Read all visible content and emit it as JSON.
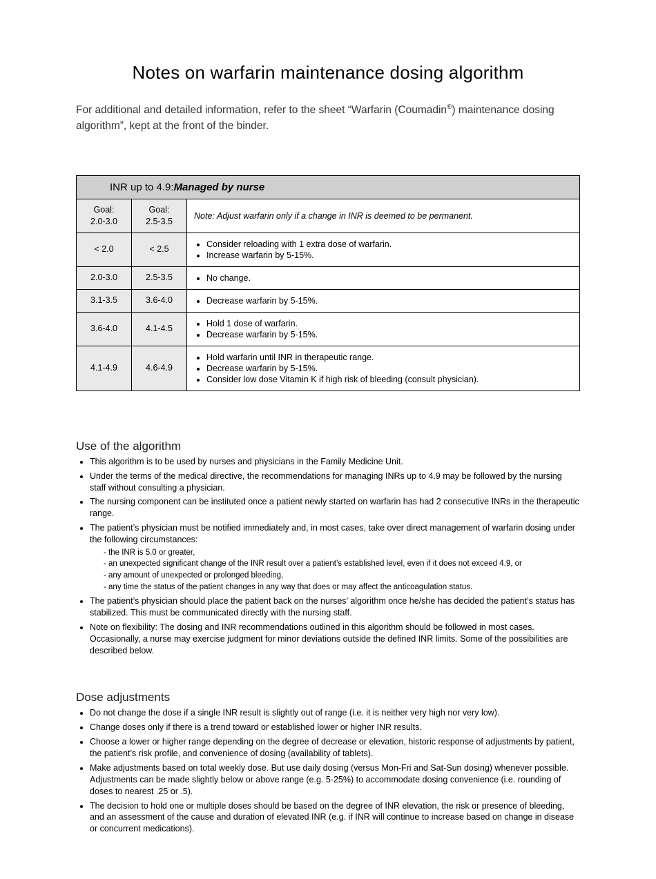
{
  "title": "Notes on warfarin maintenance dosing algorithm",
  "intro_prefix": "For additional and detailed information, refer to the sheet “Warfarin (Coumadin",
  "intro_suffix": ") maintenance dosing algorithm”, kept at the front of the binder.",
  "table": {
    "header_lead": "INR up to 4.9:  ",
    "header_managed": "Managed by nurse",
    "goal1_label": "Goal:",
    "goal1_range": "2.0-3.0",
    "goal2_label": "Goal:",
    "goal2_range": "2.5-3.5",
    "note": "Note: Adjust warfarin only if a change in INR is deemed to be permanent.",
    "rows": [
      {
        "g1": "< 2.0",
        "g2": "< 2.5",
        "actions": [
          "Consider reloading with 1 extra dose of warfarin.",
          "Increase warfarin by 5-15%."
        ]
      },
      {
        "g1": "2.0-3.0",
        "g2": "2.5-3.5",
        "actions": [
          "No change."
        ]
      },
      {
        "g1": "3.1-3.5",
        "g2": "3.6-4.0",
        "actions": [
          "Decrease warfarin by 5-15%."
        ]
      },
      {
        "g1": "3.6-4.0",
        "g2": "4.1-4.5",
        "actions": [
          "Hold 1 dose of warfarin.",
          "Decrease warfarin by 5-15%."
        ]
      },
      {
        "g1": "4.1-4.9",
        "g2": "4.6-4.9",
        "actions": [
          "Hold warfarin until INR in therapeutic range.",
          "Decrease warfarin by 5-15%.",
          "Consider low dose Vitamin K if high risk of bleeding (consult physician)."
        ]
      }
    ]
  },
  "use": {
    "heading": "Use of the algorithm",
    "items": [
      "This algorithm is to be used by nurses and physicians in the Family Medicine Unit.",
      "Under the terms of the medical directive, the recommendations for managing INRs up to 4.9 may be followed by the nursing staff without consulting a physician.",
      "The nursing component can be instituted once a patient newly started on warfarin has had 2 consecutive INRs in the therapeutic range.",
      "The patient’s physician must be notified immediately and, in most cases, take over direct management of warfarin dosing under the following circumstances:",
      "The patient’s physician should place the patient back on the nurses’ algorithm once he/she has decided the patient’s status has stabilized. This must be communicated directly with the nursing staff.",
      "Note on flexibility: The dosing and INR recommendations outlined in this algorithm should be followed in most cases. Occasionally, a nurse may exercise judgment for minor deviations outside the defined INR limits. Some of the possibilities are described below."
    ],
    "sub": [
      "the INR is 5.0 or greater,",
      "an unexpected significant change of the INR result over a patient’s established level, even if it does not exceed 4.9, or",
      "any amount of unexpected or prolonged bleeding,",
      "any time the status of the patient changes in any way that does or may affect the anticoagulation status."
    ]
  },
  "dose": {
    "heading": "Dose adjustments",
    "items": [
      "Do not change the dose if a single INR result is slightly out of range (i.e. it is neither very high nor very low).",
      "Change doses only if there is a trend toward or established lower or higher INR results.",
      "Choose a lower or higher range depending on the degree of decrease or elevation, historic response of adjustments by patient, the patient’s risk profile, and convenience of dosing (availability of tablets).",
      "Make adjustments based on total weekly dose. But use daily dosing (versus Mon-Fri and Sat-Sun dosing) whenever possible. Adjustments can be made slightly below or above range (e.g. 5-25%) to accommodate dosing convenience (i.e. rounding of doses to nearest .25 or .5).",
      "The decision to hold one or multiple doses should be based on the degree of INR elevation, the risk or presence of bleeding, and an assessment of the cause and duration of elevated INR (e.g. if INR will continue to increase based on change in disease or concurrent medications)."
    ]
  }
}
